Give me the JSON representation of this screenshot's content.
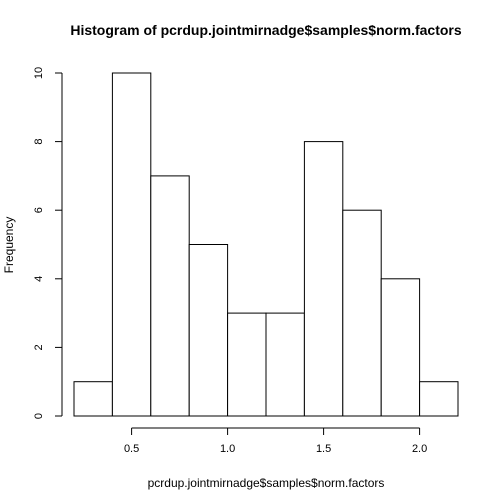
{
  "chart_data": {
    "type": "bar",
    "subtype": "histogram",
    "title": "Histogram of pcrdup.jointmirnadge$samples$norm.factors",
    "xlabel": "pcrdup.jointmirnadge$samples$norm.factors",
    "ylabel": "Frequency",
    "bins": [
      {
        "x0": 0.2,
        "x1": 0.4,
        "count": 1
      },
      {
        "x0": 0.4,
        "x1": 0.6,
        "count": 10
      },
      {
        "x0": 0.6,
        "x1": 0.8,
        "count": 7
      },
      {
        "x0": 0.8,
        "x1": 1.0,
        "count": 5
      },
      {
        "x0": 1.0,
        "x1": 1.2,
        "count": 3
      },
      {
        "x0": 1.2,
        "x1": 1.4,
        "count": 3
      },
      {
        "x0": 1.4,
        "x1": 1.6,
        "count": 8
      },
      {
        "x0": 1.6,
        "x1": 1.8,
        "count": 6
      },
      {
        "x0": 1.8,
        "x1": 2.0,
        "count": 4
      },
      {
        "x0": 2.0,
        "x1": 2.2,
        "count": 1
      }
    ],
    "xlim": [
      0.2,
      2.2
    ],
    "ylim": [
      0,
      10
    ],
    "xticks": [
      0.5,
      1.0,
      1.5,
      2.0
    ],
    "xtick_labels": [
      "0.5",
      "1.0",
      "1.5",
      "2.0"
    ],
    "yticks": [
      0,
      2,
      4,
      6,
      8,
      10
    ],
    "ytick_labels": [
      "0",
      "2",
      "4",
      "6",
      "8",
      "10"
    ],
    "grid": false,
    "legend": "none",
    "colors": {
      "bar_fill": "#ffffff",
      "bar_stroke": "#000000"
    }
  }
}
